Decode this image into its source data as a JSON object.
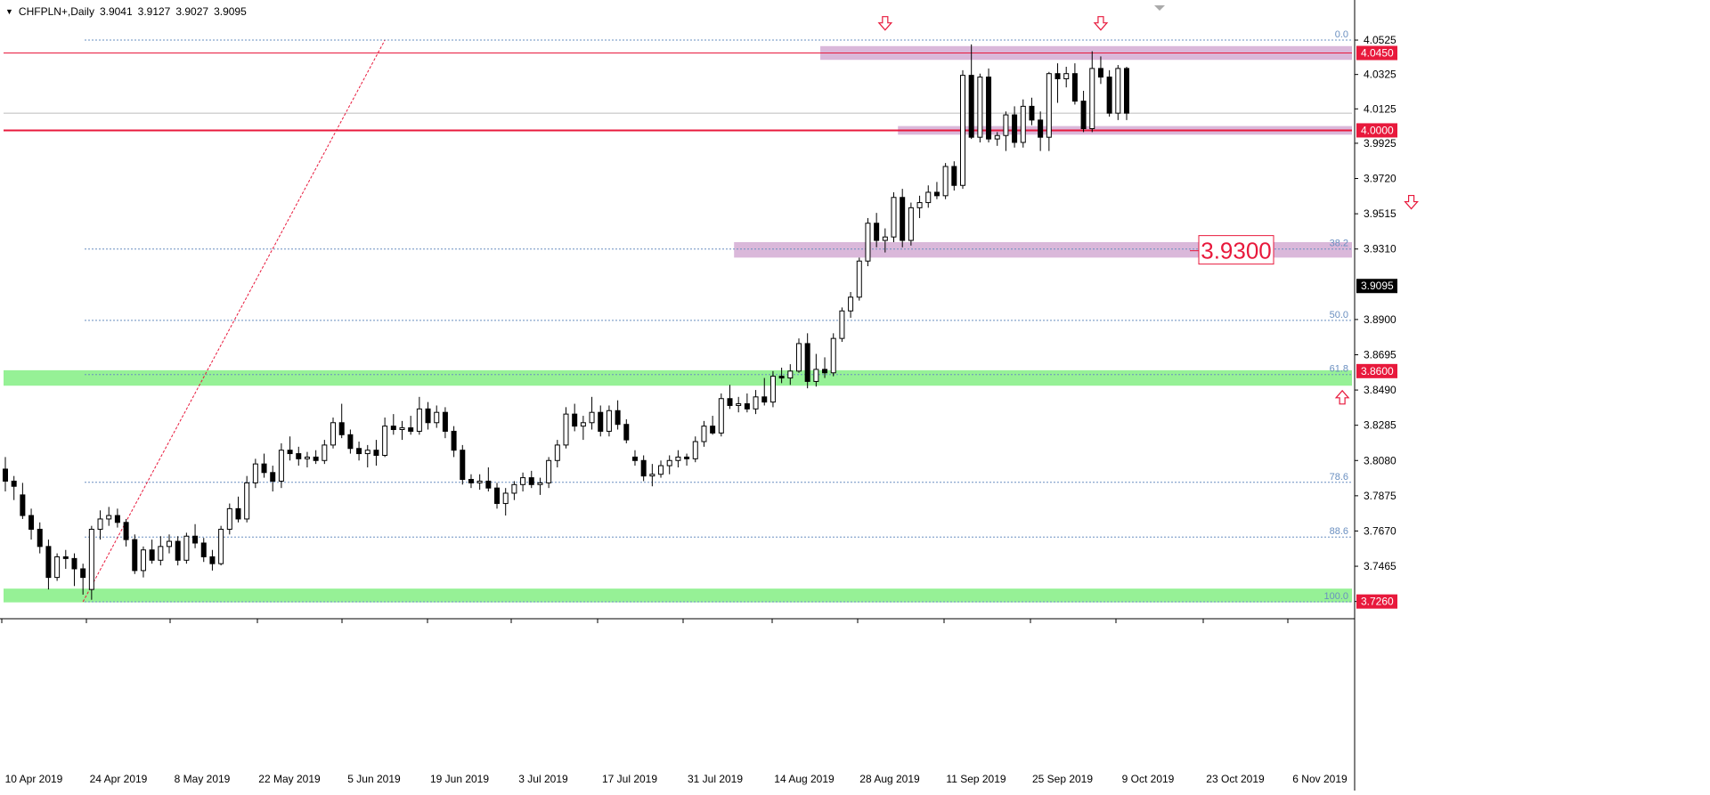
{
  "header": {
    "symbol": "CHFPLN+,Daily",
    "open": "3.9041",
    "high": "3.9127",
    "low": "3.9027",
    "close": "3.9095"
  },
  "annotation_label": "3.9300",
  "colors": {
    "background": "#ffffff",
    "candle_up_body": "#ffffff",
    "candle_down_body": "#000000",
    "candle_outline": "#000000",
    "resistance_zone": "#d8b4d8",
    "support_zone": "#90f090",
    "level_line": "#e8193c",
    "fib_line": "#6a8fc0",
    "fib_text": "#6a8fc0",
    "trend_line": "#e8193c",
    "arrow": "#e8193c",
    "price_tag_red": "#e8193c",
    "price_tag_black": "#000000"
  },
  "chart_data": {
    "type": "candlestick",
    "symbol": "CHFPLN+",
    "timeframe": "Daily",
    "ylim": [
      3.7165,
      4.0665
    ],
    "y_ticks": [
      "4.0525",
      "4.0325",
      "4.0125",
      "3.9925",
      "3.9720",
      "3.9515",
      "3.9310",
      "3.8900",
      "3.8695",
      "3.8490",
      "3.8285",
      "3.8080",
      "3.7875",
      "3.7670",
      "3.7465",
      "3.7260"
    ],
    "x_tick_labels": [
      "10 Apr 2019",
      "24 Apr 2019",
      "8 May 2019",
      "22 May 2019",
      "5 Jun 2019",
      "19 Jun 2019",
      "3 Jul 2019",
      "17 Jul 2019",
      "31 Jul 2019",
      "14 Aug 2019",
      "28 Aug 2019",
      "11 Sep 2019",
      "25 Sep 2019",
      "9 Oct 2019",
      "23 Oct 2019",
      "6 Nov 2019"
    ],
    "price_tags": [
      {
        "value": "4.0450",
        "style": "red"
      },
      {
        "value": "4.0000",
        "style": "red"
      },
      {
        "value": "3.9095",
        "style": "black"
      },
      {
        "value": "3.8600",
        "style": "red"
      },
      {
        "value": "3.7260",
        "style": "red"
      }
    ],
    "fibonacci": [
      {
        "label": "0.0",
        "price": 4.0525
      },
      {
        "label": "38.2",
        "price": 3.931
      },
      {
        "label": "50.0",
        "price": 3.8895
      },
      {
        "label": "61.8",
        "price": 3.858
      },
      {
        "label": "78.6",
        "price": 3.7953
      },
      {
        "label": "88.6",
        "price": 3.7635
      },
      {
        "label": "100.0",
        "price": 3.7258
      }
    ],
    "zones": [
      {
        "kind": "resistance",
        "from": 4.041,
        "to": 4.049,
        "start_index": 95
      },
      {
        "kind": "resistance",
        "from": 3.9975,
        "to": 4.0025,
        "start_index": 104
      },
      {
        "kind": "resistance",
        "from": 3.926,
        "to": 3.935,
        "start_index": 85
      },
      {
        "kind": "support",
        "from": 3.8515,
        "to": 3.8605,
        "start_index": 0
      },
      {
        "kind": "support",
        "from": 3.7255,
        "to": 3.7335,
        "start_index": 0
      }
    ],
    "horizontal_lines": [
      {
        "price": 4.045,
        "width": 1
      },
      {
        "price": 4.0,
        "width": 2
      }
    ],
    "arrows": [
      {
        "dir": "down",
        "index": 102,
        "price": 4.062
      },
      {
        "dir": "down",
        "index": 127,
        "price": 4.062
      },
      {
        "dir": "down",
        "index": 163,
        "price": 3.958
      },
      {
        "dir": "up",
        "index": 155,
        "price": 3.845
      }
    ],
    "trend_line": {
      "from": {
        "index": 9,
        "price": 3.7258
      },
      "to": {
        "index": 44,
        "price": 4.0525
      }
    },
    "candles": [
      {
        "date": "2019-04-04",
        "o": 3.803,
        "h": 3.81,
        "l": 3.79,
        "c": 3.796
      },
      {
        "date": "2019-04-05",
        "o": 3.796,
        "h": 3.799,
        "l": 3.785,
        "c": 3.793
      },
      {
        "date": "2019-04-08",
        "o": 3.788,
        "h": 3.795,
        "l": 3.774,
        "c": 3.776
      },
      {
        "date": "2019-04-09",
        "o": 3.776,
        "h": 3.78,
        "l": 3.762,
        "c": 3.768
      },
      {
        "date": "2019-04-10",
        "o": 3.768,
        "h": 3.772,
        "l": 3.754,
        "c": 3.758
      },
      {
        "date": "2019-04-11",
        "o": 3.758,
        "h": 3.762,
        "l": 3.733,
        "c": 3.74
      },
      {
        "date": "2019-04-12",
        "o": 3.74,
        "h": 3.754,
        "l": 3.738,
        "c": 3.752
      },
      {
        "date": "2019-04-15",
        "o": 3.752,
        "h": 3.756,
        "l": 3.745,
        "c": 3.751
      },
      {
        "date": "2019-04-16",
        "o": 3.751,
        "h": 3.754,
        "l": 3.735,
        "c": 3.745
      },
      {
        "date": "2019-04-17",
        "o": 3.745,
        "h": 3.748,
        "l": 3.73,
        "c": 3.74
      },
      {
        "date": "2019-04-18",
        "o": 3.733,
        "h": 3.77,
        "l": 3.727,
        "c": 3.768
      },
      {
        "date": "2019-04-19",
        "o": 3.768,
        "h": 3.779,
        "l": 3.762,
        "c": 3.774
      },
      {
        "date": "2019-04-22",
        "o": 3.774,
        "h": 3.781,
        "l": 3.77,
        "c": 3.776
      },
      {
        "date": "2019-04-23",
        "o": 3.776,
        "h": 3.78,
        "l": 3.769,
        "c": 3.772
      },
      {
        "date": "2019-04-24",
        "o": 3.772,
        "h": 3.774,
        "l": 3.758,
        "c": 3.762
      },
      {
        "date": "2019-04-25",
        "o": 3.762,
        "h": 3.765,
        "l": 3.742,
        "c": 3.744
      },
      {
        "date": "2019-04-26",
        "o": 3.744,
        "h": 3.758,
        "l": 3.74,
        "c": 3.756
      },
      {
        "date": "2019-04-29",
        "o": 3.756,
        "h": 3.762,
        "l": 3.748,
        "c": 3.75
      },
      {
        "date": "2019-04-30",
        "o": 3.75,
        "h": 3.764,
        "l": 3.747,
        "c": 3.758
      },
      {
        "date": "2019-05-01",
        "o": 3.758,
        "h": 3.765,
        "l": 3.754,
        "c": 3.761
      },
      {
        "date": "2019-05-02",
        "o": 3.761,
        "h": 3.764,
        "l": 3.747,
        "c": 3.75
      },
      {
        "date": "2019-05-03",
        "o": 3.75,
        "h": 3.766,
        "l": 3.748,
        "c": 3.764
      },
      {
        "date": "2019-05-06",
        "o": 3.764,
        "h": 3.771,
        "l": 3.757,
        "c": 3.76
      },
      {
        "date": "2019-05-07",
        "o": 3.76,
        "h": 3.763,
        "l": 3.749,
        "c": 3.752
      },
      {
        "date": "2019-05-08",
        "o": 3.752,
        "h": 3.756,
        "l": 3.744,
        "c": 3.748
      },
      {
        "date": "2019-05-09",
        "o": 3.748,
        "h": 3.77,
        "l": 3.747,
        "c": 3.768
      },
      {
        "date": "2019-05-10",
        "o": 3.768,
        "h": 3.783,
        "l": 3.765,
        "c": 3.78
      },
      {
        "date": "2019-05-13",
        "o": 3.78,
        "h": 3.787,
        "l": 3.772,
        "c": 3.774
      },
      {
        "date": "2019-05-14",
        "o": 3.774,
        "h": 3.799,
        "l": 3.772,
        "c": 3.795
      },
      {
        "date": "2019-05-15",
        "o": 3.795,
        "h": 3.809,
        "l": 3.792,
        "c": 3.806
      },
      {
        "date": "2019-05-16",
        "o": 3.806,
        "h": 3.812,
        "l": 3.798,
        "c": 3.801
      },
      {
        "date": "2019-05-17",
        "o": 3.801,
        "h": 3.805,
        "l": 3.79,
        "c": 3.796
      },
      {
        "date": "2019-05-20",
        "o": 3.796,
        "h": 3.818,
        "l": 3.792,
        "c": 3.814
      },
      {
        "date": "2019-05-21",
        "o": 3.814,
        "h": 3.822,
        "l": 3.808,
        "c": 3.812
      },
      {
        "date": "2019-05-22",
        "o": 3.812,
        "h": 3.816,
        "l": 3.805,
        "c": 3.809
      },
      {
        "date": "2019-05-23",
        "o": 3.809,
        "h": 3.813,
        "l": 3.804,
        "c": 3.81
      },
      {
        "date": "2019-05-24",
        "o": 3.81,
        "h": 3.814,
        "l": 3.806,
        "c": 3.808
      },
      {
        "date": "2019-05-27",
        "o": 3.808,
        "h": 3.82,
        "l": 3.806,
        "c": 3.817
      },
      {
        "date": "2019-05-28",
        "o": 3.817,
        "h": 3.833,
        "l": 3.815,
        "c": 3.83
      },
      {
        "date": "2019-05-29",
        "o": 3.83,
        "h": 3.841,
        "l": 3.821,
        "c": 3.823
      },
      {
        "date": "2019-05-30",
        "o": 3.823,
        "h": 3.826,
        "l": 3.812,
        "c": 3.815
      },
      {
        "date": "2019-05-31",
        "o": 3.815,
        "h": 3.819,
        "l": 3.808,
        "c": 3.812
      },
      {
        "date": "2019-06-03",
        "o": 3.812,
        "h": 3.817,
        "l": 3.804,
        "c": 3.814
      },
      {
        "date": "2019-06-04",
        "o": 3.814,
        "h": 3.82,
        "l": 3.805,
        "c": 3.811
      },
      {
        "date": "2019-06-05",
        "o": 3.811,
        "h": 3.833,
        "l": 3.81,
        "c": 3.828
      },
      {
        "date": "2019-06-06",
        "o": 3.828,
        "h": 3.835,
        "l": 3.823,
        "c": 3.826
      },
      {
        "date": "2019-06-07",
        "o": 3.826,
        "h": 3.831,
        "l": 3.82,
        "c": 3.827
      },
      {
        "date": "2019-06-10",
        "o": 3.827,
        "h": 3.834,
        "l": 3.823,
        "c": 3.825
      },
      {
        "date": "2019-06-11",
        "o": 3.825,
        "h": 3.845,
        "l": 3.823,
        "c": 3.838
      },
      {
        "date": "2019-06-12",
        "o": 3.838,
        "h": 3.842,
        "l": 3.826,
        "c": 3.83
      },
      {
        "date": "2019-06-13",
        "o": 3.83,
        "h": 3.84,
        "l": 3.827,
        "c": 3.836
      },
      {
        "date": "2019-06-14",
        "o": 3.836,
        "h": 3.839,
        "l": 3.821,
        "c": 3.825
      },
      {
        "date": "2019-06-17",
        "o": 3.825,
        "h": 3.828,
        "l": 3.81,
        "c": 3.814
      },
      {
        "date": "2019-06-18",
        "o": 3.814,
        "h": 3.817,
        "l": 3.794,
        "c": 3.797
      },
      {
        "date": "2019-06-19",
        "o": 3.797,
        "h": 3.8,
        "l": 3.792,
        "c": 3.795
      },
      {
        "date": "2019-06-20",
        "o": 3.795,
        "h": 3.8,
        "l": 3.791,
        "c": 3.796
      },
      {
        "date": "2019-06-21",
        "o": 3.796,
        "h": 3.804,
        "l": 3.79,
        "c": 3.792
      },
      {
        "date": "2019-06-24",
        "o": 3.792,
        "h": 3.795,
        "l": 3.78,
        "c": 3.783
      },
      {
        "date": "2019-06-25",
        "o": 3.783,
        "h": 3.792,
        "l": 3.776,
        "c": 3.789
      },
      {
        "date": "2019-06-26",
        "o": 3.789,
        "h": 3.796,
        "l": 3.785,
        "c": 3.794
      },
      {
        "date": "2019-06-27",
        "o": 3.794,
        "h": 3.801,
        "l": 3.79,
        "c": 3.798
      },
      {
        "date": "2019-06-28",
        "o": 3.798,
        "h": 3.802,
        "l": 3.792,
        "c": 3.794
      },
      {
        "date": "2019-07-01",
        "o": 3.794,
        "h": 3.798,
        "l": 3.788,
        "c": 3.795
      },
      {
        "date": "2019-07-02",
        "o": 3.795,
        "h": 3.81,
        "l": 3.792,
        "c": 3.808
      },
      {
        "date": "2019-07-03",
        "o": 3.808,
        "h": 3.82,
        "l": 3.804,
        "c": 3.817
      },
      {
        "date": "2019-07-04",
        "o": 3.817,
        "h": 3.839,
        "l": 3.815,
        "c": 3.835
      },
      {
        "date": "2019-07-05",
        "o": 3.835,
        "h": 3.841,
        "l": 3.825,
        "c": 3.828
      },
      {
        "date": "2019-07-08",
        "o": 3.828,
        "h": 3.834,
        "l": 3.82,
        "c": 3.83
      },
      {
        "date": "2019-07-09",
        "o": 3.83,
        "h": 3.845,
        "l": 3.826,
        "c": 3.836
      },
      {
        "date": "2019-07-10",
        "o": 3.836,
        "h": 3.84,
        "l": 3.822,
        "c": 3.825
      },
      {
        "date": "2019-07-11",
        "o": 3.825,
        "h": 3.84,
        "l": 3.822,
        "c": 3.837
      },
      {
        "date": "2019-07-12",
        "o": 3.837,
        "h": 3.843,
        "l": 3.826,
        "c": 3.829
      },
      {
        "date": "2019-07-15",
        "o": 3.829,
        "h": 3.832,
        "l": 3.818,
        "c": 3.82
      },
      {
        "date": "2019-07-16",
        "o": 3.81,
        "h": 3.814,
        "l": 3.805,
        "c": 3.808
      },
      {
        "date": "2019-07-17",
        "o": 3.808,
        "h": 3.811,
        "l": 3.796,
        "c": 3.799
      },
      {
        "date": "2019-07-18",
        "o": 3.799,
        "h": 3.806,
        "l": 3.793,
        "c": 3.8
      },
      {
        "date": "2019-07-19",
        "o": 3.8,
        "h": 3.808,
        "l": 3.798,
        "c": 3.805
      },
      {
        "date": "2019-07-22",
        "o": 3.805,
        "h": 3.811,
        "l": 3.8,
        "c": 3.808
      },
      {
        "date": "2019-07-23",
        "o": 3.808,
        "h": 3.814,
        "l": 3.804,
        "c": 3.81
      },
      {
        "date": "2019-07-24",
        "o": 3.81,
        "h": 3.812,
        "l": 3.805,
        "c": 3.809
      },
      {
        "date": "2019-07-25",
        "o": 3.809,
        "h": 3.822,
        "l": 3.807,
        "c": 3.819
      },
      {
        "date": "2019-07-26",
        "o": 3.819,
        "h": 3.831,
        "l": 3.816,
        "c": 3.828
      },
      {
        "date": "2019-07-29",
        "o": 3.828,
        "h": 3.834,
        "l": 3.823,
        "c": 3.824
      },
      {
        "date": "2019-07-30",
        "o": 3.824,
        "h": 3.847,
        "l": 3.822,
        "c": 3.844
      },
      {
        "date": "2019-07-31",
        "o": 3.844,
        "h": 3.852,
        "l": 3.838,
        "c": 3.84
      },
      {
        "date": "2019-08-01",
        "o": 3.84,
        "h": 3.845,
        "l": 3.836,
        "c": 3.841
      },
      {
        "date": "2019-08-02",
        "o": 3.841,
        "h": 3.847,
        "l": 3.836,
        "c": 3.838
      },
      {
        "date": "2019-08-05",
        "o": 3.838,
        "h": 3.849,
        "l": 3.835,
        "c": 3.845
      },
      {
        "date": "2019-08-06",
        "o": 3.845,
        "h": 3.856,
        "l": 3.84,
        "c": 3.842
      },
      {
        "date": "2019-08-07",
        "o": 3.842,
        "h": 3.86,
        "l": 3.839,
        "c": 3.857
      },
      {
        "date": "2019-08-08",
        "o": 3.857,
        "h": 3.862,
        "l": 3.853,
        "c": 3.856
      },
      {
        "date": "2019-08-09",
        "o": 3.856,
        "h": 3.864,
        "l": 3.852,
        "c": 3.86
      },
      {
        "date": "2019-08-12",
        "o": 3.86,
        "h": 3.879,
        "l": 3.859,
        "c": 3.876
      },
      {
        "date": "2019-08-13",
        "o": 3.876,
        "h": 3.882,
        "l": 3.85,
        "c": 3.854
      },
      {
        "date": "2019-08-14",
        "o": 3.854,
        "h": 3.87,
        "l": 3.851,
        "c": 3.861
      },
      {
        "date": "2019-08-15",
        "o": 3.861,
        "h": 3.868,
        "l": 3.856,
        "c": 3.859
      },
      {
        "date": "2019-08-16",
        "o": 3.859,
        "h": 3.882,
        "l": 3.857,
        "c": 3.879
      },
      {
        "date": "2019-08-19",
        "o": 3.879,
        "h": 3.897,
        "l": 3.877,
        "c": 3.895
      },
      {
        "date": "2019-08-20",
        "o": 3.895,
        "h": 3.906,
        "l": 3.891,
        "c": 3.903
      },
      {
        "date": "2019-08-21",
        "o": 3.903,
        "h": 3.926,
        "l": 3.901,
        "c": 3.924
      },
      {
        "date": "2019-08-22",
        "o": 3.924,
        "h": 3.949,
        "l": 3.921,
        "c": 3.946
      },
      {
        "date": "2019-08-23",
        "o": 3.946,
        "h": 3.952,
        "l": 3.932,
        "c": 3.936
      },
      {
        "date": "2019-08-26",
        "o": 3.936,
        "h": 3.943,
        "l": 3.929,
        "c": 3.938
      },
      {
        "date": "2019-08-27",
        "o": 3.938,
        "h": 3.964,
        "l": 3.935,
        "c": 3.961
      },
      {
        "date": "2019-08-28",
        "o": 3.961,
        "h": 3.966,
        "l": 3.932,
        "c": 3.936
      },
      {
        "date": "2019-08-29",
        "o": 3.936,
        "h": 3.958,
        "l": 3.933,
        "c": 3.955
      },
      {
        "date": "2019-08-30",
        "o": 3.955,
        "h": 3.962,
        "l": 3.949,
        "c": 3.958
      },
      {
        "date": "2019-09-02",
        "o": 3.958,
        "h": 3.968,
        "l": 3.955,
        "c": 3.964
      },
      {
        "date": "2019-09-03",
        "o": 3.964,
        "h": 3.97,
        "l": 3.96,
        "c": 3.962
      },
      {
        "date": "2019-09-04",
        "o": 3.962,
        "h": 3.981,
        "l": 3.96,
        "c": 3.979
      },
      {
        "date": "2019-09-05",
        "o": 3.979,
        "h": 3.982,
        "l": 3.965,
        "c": 3.968
      },
      {
        "date": "2019-09-06",
        "o": 3.968,
        "h": 4.035,
        "l": 3.966,
        "c": 4.032
      },
      {
        "date": "2019-09-09",
        "o": 4.032,
        "h": 4.05,
        "l": 3.995,
        "c": 3.996
      },
      {
        "date": "2019-09-10",
        "o": 3.996,
        "h": 4.033,
        "l": 3.993,
        "c": 4.031
      },
      {
        "date": "2019-09-11",
        "o": 4.031,
        "h": 4.036,
        "l": 3.993,
        "c": 3.995
      },
      {
        "date": "2019-09-12",
        "o": 3.995,
        "h": 3.999,
        "l": 3.991,
        "c": 3.997
      },
      {
        "date": "2019-09-13",
        "o": 3.997,
        "h": 4.011,
        "l": 3.988,
        "c": 4.009
      },
      {
        "date": "2019-09-16",
        "o": 4.009,
        "h": 4.014,
        "l": 3.99,
        "c": 3.993
      },
      {
        "date": "2019-09-17",
        "o": 3.993,
        "h": 4.018,
        "l": 3.99,
        "c": 4.014
      },
      {
        "date": "2019-09-18",
        "o": 4.014,
        "h": 4.019,
        "l": 4.003,
        "c": 4.006
      },
      {
        "date": "2019-09-19",
        "o": 4.006,
        "h": 4.011,
        "l": 3.988,
        "c": 3.996
      },
      {
        "date": "2019-09-20",
        "o": 3.996,
        "h": 4.034,
        "l": 3.988,
        "c": 4.033
      },
      {
        "date": "2019-09-23",
        "o": 4.033,
        "h": 4.039,
        "l": 4.016,
        "c": 4.03
      },
      {
        "date": "2019-09-24",
        "o": 4.03,
        "h": 4.037,
        "l": 4.025,
        "c": 4.033
      },
      {
        "date": "2019-09-25",
        "o": 4.033,
        "h": 4.039,
        "l": 4.015,
        "c": 4.017
      },
      {
        "date": "2019-09-26",
        "o": 4.017,
        "h": 4.023,
        "l": 3.999,
        "c": 4.001
      },
      {
        "date": "2019-09-27",
        "o": 4.001,
        "h": 4.046,
        "l": 3.999,
        "c": 4.036
      },
      {
        "date": "2019-09-30",
        "o": 4.036,
        "h": 4.043,
        "l": 4.027,
        "c": 4.031
      },
      {
        "date": "2019-10-01",
        "o": 4.031,
        "h": 4.035,
        "l": 4.008,
        "c": 4.01
      },
      {
        "date": "2019-10-02",
        "o": 4.01,
        "h": 4.038,
        "l": 4.006,
        "c": 4.036
      },
      {
        "date": "2019-10-03",
        "o": 4.036,
        "h": 4.037,
        "l": 4.006,
        "c": 4.01
      }
    ]
  }
}
